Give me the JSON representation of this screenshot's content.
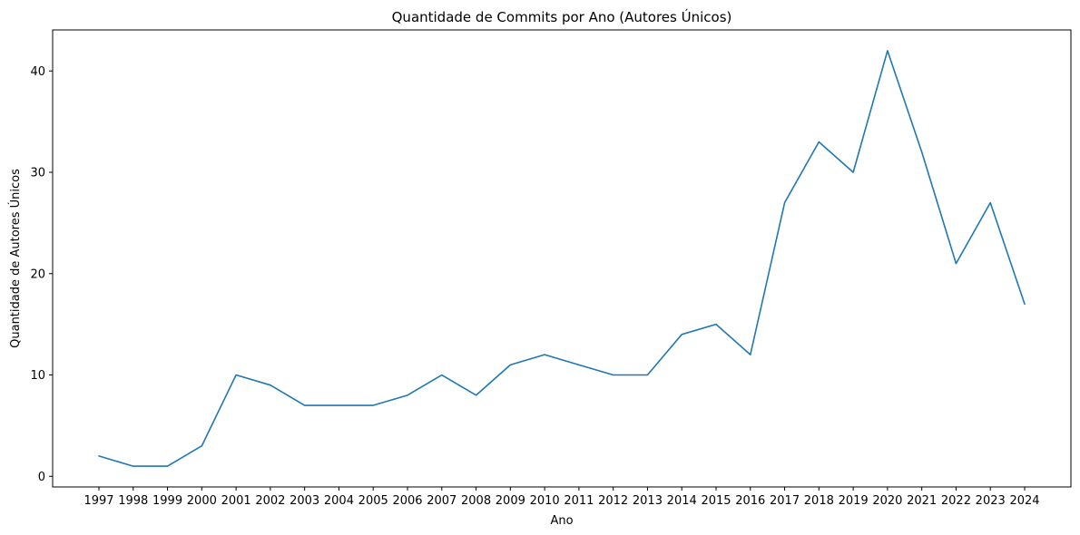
{
  "chart_data": {
    "type": "line",
    "title": "Quantidade de Commits por Ano (Autores Únicos)",
    "xlabel": "Ano",
    "ylabel": "Quantidade de Autores Únicos",
    "categories": [
      "1997",
      "1998",
      "1999",
      "2000",
      "2001",
      "2002",
      "2003",
      "2004",
      "2005",
      "2006",
      "2007",
      "2008",
      "2009",
      "2010",
      "2011",
      "2012",
      "2013",
      "2014",
      "2015",
      "2016",
      "2017",
      "2018",
      "2019",
      "2020",
      "2021",
      "2022",
      "2023",
      "2024"
    ],
    "series": [
      {
        "color": "#1f77b4",
        "values": [
          2,
          1,
          1,
          3,
          10,
          9,
          7,
          7,
          7,
          8,
          10,
          8,
          11,
          12,
          11,
          10,
          10,
          14,
          15,
          12,
          27,
          33,
          30,
          42,
          32,
          21,
          27,
          17
        ]
      }
    ],
    "yticks": [
      0,
      10,
      20,
      30,
      40
    ],
    "ylim": [
      -1.05,
      44.05
    ],
    "grid": false,
    "legend": "none"
  }
}
